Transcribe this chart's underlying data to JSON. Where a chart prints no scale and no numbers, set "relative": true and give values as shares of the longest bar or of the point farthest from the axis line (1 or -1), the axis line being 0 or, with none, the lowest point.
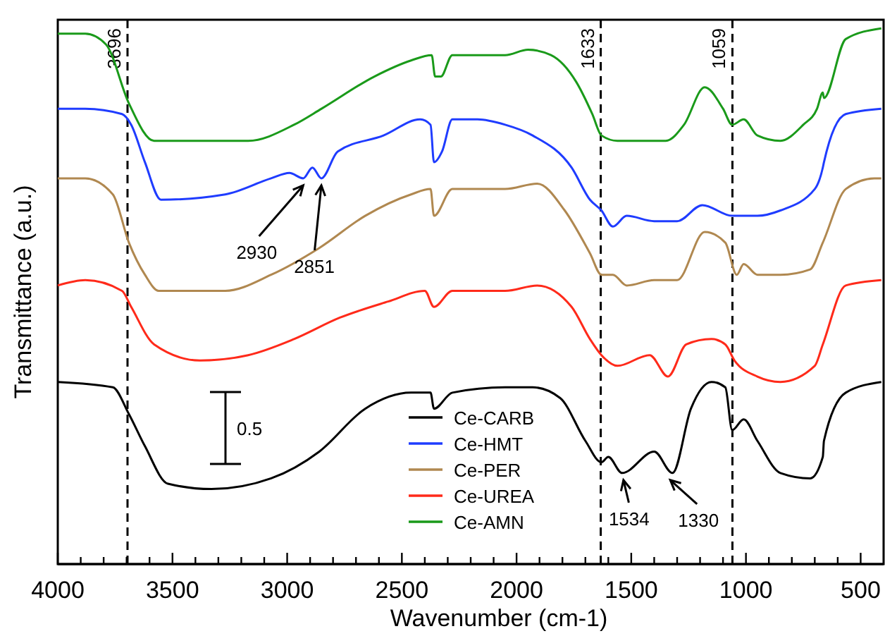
{
  "chart_data": {
    "type": "line",
    "relative": true,
    "xlabel": "Wavenumber (cm-1)",
    "ylabel": "Transmittance (a.u.)",
    "xlim": [
      4000,
      400
    ],
    "xticks": [
      4000,
      {
        "value": 3900,
        "label": null
      },
      {
        "value": 3800,
        "label": null
      },
      {
        "value": 3700,
        "label": null
      },
      {
        "value": 3600,
        "label": null
      },
      3500,
      {
        "value": 3400,
        "label": null
      },
      {
        "value": 3300,
        "label": null
      },
      {
        "value": 3200,
        "label": null
      },
      {
        "value": 3100,
        "label": null
      },
      3000,
      {
        "value": 2900,
        "label": null
      },
      {
        "value": 2800,
        "label": null
      },
      {
        "value": 2700,
        "label": null
      },
      {
        "value": 2600,
        "label": null
      },
      2500,
      {
        "value": 2400,
        "label": null
      },
      {
        "value": 2300,
        "label": null
      },
      {
        "value": 2200,
        "label": null
      },
      {
        "value": 2100,
        "label": null
      },
      2000,
      {
        "value": 1900,
        "label": null
      },
      {
        "value": 1800,
        "label": null
      },
      {
        "value": 1700,
        "label": null
      },
      {
        "value": 1600,
        "label": null
      },
      1500,
      {
        "value": 1400,
        "label": null
      },
      {
        "value": 1300,
        "label": null
      },
      {
        "value": 1200,
        "label": null
      },
      {
        "value": 1100,
        "label": null
      },
      1000,
      {
        "value": 900,
        "label": null
      },
      {
        "value": 800,
        "label": null
      },
      {
        "value": 700,
        "label": null
      },
      {
        "value": 600,
        "label": null
      },
      500
    ],
    "series": [
      {
        "name": "Ce-CARB",
        "color": "#000000",
        "x": [
          4000,
          3760,
          3690,
          3620,
          3520,
          3330,
          3070,
          2860,
          2660,
          2460,
          2375,
          2360,
          2280,
          2050,
          1930,
          1810,
          1700,
          1630,
          1600,
          1540,
          1400,
          1320,
          1240,
          1150,
          1090,
          1060,
          1010,
          950,
          850,
          720,
          665,
          660,
          565,
          410
        ],
        "values": [
          0.34,
          0.33,
          0.28,
          0.22,
          0.15,
          0.14,
          0.16,
          0.21,
          0.29,
          0.32,
          0.32,
          0.29,
          0.32,
          0.33,
          0.33,
          0.31,
          0.23,
          0.19,
          0.2,
          0.17,
          0.21,
          0.17,
          0.29,
          0.34,
          0.33,
          0.25,
          0.27,
          0.23,
          0.17,
          0.16,
          0.2,
          0.23,
          0.32,
          0.34
        ]
      },
      {
        "name": "Ce-HMT",
        "color": "#1f3cff",
        "x": [
          4000,
          3880,
          3720,
          3680,
          3620,
          3550,
          3270,
          3070,
          2990,
          2930,
          2890,
          2851,
          2780,
          2580,
          2420,
          2375,
          2360,
          2325,
          2280,
          2170,
          2050,
          1930,
          1760,
          1680,
          1630,
          1580,
          1520,
          1400,
          1300,
          1190,
          1060,
          950,
          850,
          700,
          665,
          660,
          565,
          410
        ],
        "values": [
          0.85,
          0.85,
          0.84,
          0.82,
          0.75,
          0.68,
          0.69,
          0.72,
          0.73,
          0.72,
          0.74,
          0.72,
          0.77,
          0.8,
          0.83,
          0.82,
          0.75,
          0.77,
          0.83,
          0.83,
          0.82,
          0.8,
          0.74,
          0.68,
          0.66,
          0.63,
          0.65,
          0.64,
          0.64,
          0.67,
          0.65,
          0.65,
          0.66,
          0.7,
          0.74,
          0.75,
          0.84,
          0.85
        ]
      },
      {
        "name": "Ce-PER",
        "color": "#b08850",
        "x": [
          4000,
          3880,
          3760,
          3690,
          3620,
          3560,
          3270,
          3070,
          2860,
          2660,
          2460,
          2375,
          2360,
          2280,
          2050,
          1910,
          1790,
          1680,
          1630,
          1580,
          1520,
          1400,
          1300,
          1180,
          1090,
          1040,
          1010,
          950,
          850,
          720,
          665,
          565,
          440,
          410
        ],
        "values": [
          0.72,
          0.72,
          0.69,
          0.6,
          0.54,
          0.51,
          0.51,
          0.54,
          0.59,
          0.65,
          0.69,
          0.7,
          0.65,
          0.7,
          0.7,
          0.71,
          0.66,
          0.58,
          0.54,
          0.54,
          0.52,
          0.53,
          0.53,
          0.62,
          0.6,
          0.54,
          0.56,
          0.54,
          0.54,
          0.55,
          0.6,
          0.7,
          0.72,
          0.72
        ]
      },
      {
        "name": "Ce-UREA",
        "color": "#ff2a1a",
        "x": [
          4000,
          3880,
          3720,
          3680,
          3580,
          3380,
          3170,
          2970,
          2770,
          2560,
          2400,
          2360,
          2280,
          2050,
          1910,
          1760,
          1680,
          1630,
          1560,
          1420,
          1340,
          1260,
          1150,
          1090,
          1050,
          950,
          850,
          700,
          665,
          565,
          410
        ],
        "values": [
          0.52,
          0.53,
          0.51,
          0.48,
          0.41,
          0.38,
          0.39,
          0.42,
          0.46,
          0.49,
          0.51,
          0.48,
          0.51,
          0.51,
          0.52,
          0.48,
          0.42,
          0.39,
          0.37,
          0.39,
          0.35,
          0.41,
          0.42,
          0.41,
          0.38,
          0.35,
          0.34,
          0.37,
          0.41,
          0.52,
          0.53
        ]
      },
      {
        "name": "Ce-AMN",
        "color": "#1a9a1a",
        "x": [
          4000,
          3880,
          3790,
          3690,
          3580,
          3380,
          3170,
          2970,
          2850,
          2620,
          2460,
          2370,
          2355,
          2330,
          2280,
          2170,
          2050,
          1950,
          1850,
          1740,
          1670,
          1630,
          1560,
          1420,
          1350,
          1270,
          1180,
          1100,
          1060,
          1010,
          950,
          850,
          750,
          690,
          665,
          660,
          565,
          410
        ],
        "values": [
          0.99,
          0.99,
          0.97,
          0.86,
          0.79,
          0.79,
          0.79,
          0.82,
          0.85,
          0.91,
          0.94,
          0.95,
          0.91,
          0.91,
          0.95,
          0.95,
          0.95,
          0.96,
          0.95,
          0.9,
          0.84,
          0.8,
          0.79,
          0.79,
          0.79,
          0.82,
          0.89,
          0.85,
          0.82,
          0.83,
          0.8,
          0.79,
          0.82,
          0.85,
          0.88,
          0.87,
          0.98,
          1
        ]
      }
    ],
    "ref_lines": [
      {
        "axis": "x",
        "value": 3696,
        "label": "3696",
        "color": "#000000",
        "line_style": "dashed"
      },
      {
        "axis": "x",
        "value": 1633,
        "label": "1633",
        "color": "#000000",
        "line_style": "dashed"
      },
      {
        "axis": "x",
        "value": 1059,
        "label": "1059",
        "color": "#000000",
        "line_style": "dashed"
      }
    ],
    "annotations": [
      {
        "text": "2930",
        "x": 2930,
        "y": 0.72
      },
      {
        "text": "2851",
        "x": 2851,
        "y": 0.72
      },
      {
        "text": "1534",
        "x": 1534,
        "y": 0.17
      },
      {
        "text": "1330",
        "x": 1330,
        "y": 0.17
      },
      "0.5"
    ],
    "legend": "bottom",
    "grid": false
  }
}
